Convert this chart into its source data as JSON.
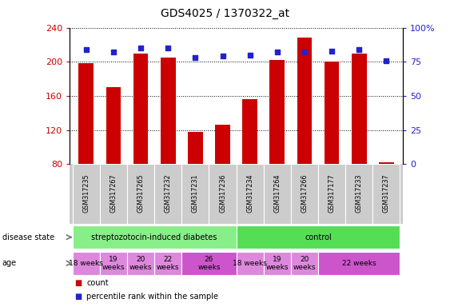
{
  "title": "GDS4025 / 1370322_at",
  "samples": [
    "GSM317235",
    "GSM317267",
    "GSM317265",
    "GSM317232",
    "GSM317231",
    "GSM317236",
    "GSM317234",
    "GSM317264",
    "GSM317266",
    "GSM317177",
    "GSM317233",
    "GSM317237"
  ],
  "bar_values": [
    198,
    170,
    210,
    205,
    118,
    126,
    156,
    202,
    228,
    200,
    210,
    82
  ],
  "percentile_values": [
    84,
    82,
    85,
    85,
    78,
    79,
    80,
    82,
    82,
    83,
    84,
    76
  ],
  "bar_bottom": 80,
  "ylim_left": [
    80,
    240
  ],
  "ylim_right": [
    0,
    100
  ],
  "yticks_left": [
    80,
    120,
    160,
    200,
    240
  ],
  "yticks_right": [
    0,
    25,
    50,
    75,
    100
  ],
  "bar_color": "#cc0000",
  "dot_color": "#2222cc",
  "tick_label_color_left": "#cc0000",
  "tick_label_color_right": "#2222cc",
  "bar_width": 0.55,
  "disease_state_groups": [
    {
      "label": "streptozotocin-induced diabetes",
      "start": 0,
      "end": 6,
      "color": "#88ee88"
    },
    {
      "label": "control",
      "start": 6,
      "end": 12,
      "color": "#55dd55"
    }
  ],
  "age_groups": [
    {
      "label": "18 weeks",
      "start": 0,
      "end": 1,
      "color": "#dd88dd"
    },
    {
      "label": "19\nweeks",
      "start": 1,
      "end": 2,
      "color": "#dd88dd"
    },
    {
      "label": "20\nweeks",
      "start": 2,
      "end": 3,
      "color": "#dd88dd"
    },
    {
      "label": "22\nweeks",
      "start": 3,
      "end": 4,
      "color": "#dd88dd"
    },
    {
      "label": "26\nweeks",
      "start": 4,
      "end": 6,
      "color": "#cc55cc"
    },
    {
      "label": "18 weeks",
      "start": 6,
      "end": 7,
      "color": "#dd88dd"
    },
    {
      "label": "19\nweeks",
      "start": 7,
      "end": 8,
      "color": "#dd88dd"
    },
    {
      "label": "20\nweeks",
      "start": 8,
      "end": 9,
      "color": "#dd88dd"
    },
    {
      "label": "22 weeks",
      "start": 9,
      "end": 12,
      "color": "#cc55cc"
    }
  ],
  "names_bg_color": "#cccccc",
  "names_border_color": "#ffffff"
}
